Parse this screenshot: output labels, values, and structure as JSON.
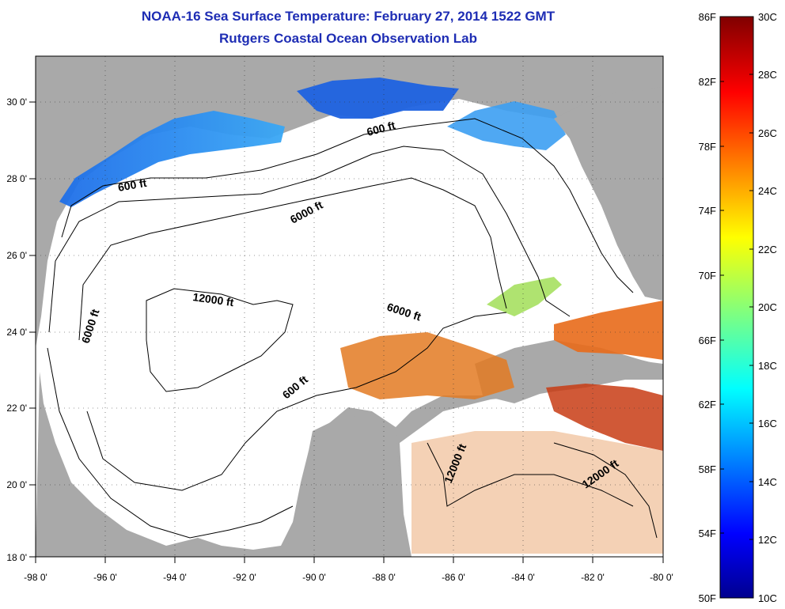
{
  "title": "NOAA-16 Sea Surface Temperature:  February 27, 2014 1522 GMT",
  "subtitle": "Rutgers Coastal Ocean Observation Lab",
  "map": {
    "lon_range": [
      -98,
      -80
    ],
    "lat_range": [
      18,
      31
    ],
    "x_ticks": [
      "-98 0'",
      "-96 0'",
      "-94 0'",
      "-92 0'",
      "-90 0'",
      "-88 0'",
      "-86 0'",
      "-84 0'",
      "-82 0'",
      "-80 0'"
    ],
    "y_ticks": [
      "18 0'",
      "20 0'",
      "22 0'",
      "24 0'",
      "26 0'",
      "28 0'",
      "30 0'"
    ],
    "contour_labels": [
      "600 ft",
      "600 ft",
      "6000 ft",
      "6000 ft",
      "12000 ft",
      "6000 ft",
      "600 ft",
      "12000 ft",
      "12000 ft"
    ]
  },
  "colorbar": {
    "fahrenheit": [
      "86F",
      "82F",
      "78F",
      "74F",
      "70F",
      "66F",
      "62F",
      "58F",
      "54F",
      "50F"
    ],
    "celsius": [
      "30C",
      "28C",
      "26C",
      "24C",
      "22C",
      "20C",
      "18C",
      "16C",
      "14C",
      "12C",
      "10C"
    ],
    "range_c": [
      10,
      30
    ],
    "range_f": [
      50,
      86
    ]
  },
  "colors": {
    "land": "#a9a9a9",
    "water_no_data": "#ffffff",
    "title": "#1e2db4",
    "cold": "#1a5ce8",
    "warm": "#e0641e"
  }
}
